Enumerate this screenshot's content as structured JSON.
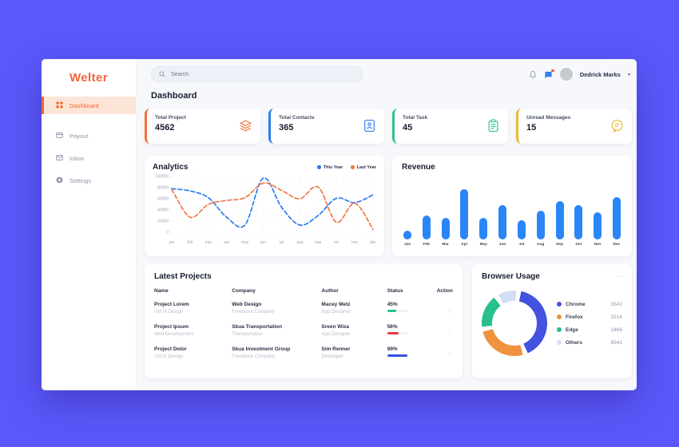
{
  "sidebar": {
    "logo": "Welter",
    "items": [
      {
        "label": "Dashboard",
        "active": true
      },
      {
        "label": "Payout",
        "active": false
      },
      {
        "label": "Inbox",
        "active": false
      },
      {
        "label": "Settings",
        "active": false
      }
    ]
  },
  "topbar": {
    "search_placeholder": "Search",
    "user_name": "Dedrick Marks",
    "caret": "▾"
  },
  "page_title": "Dashboard",
  "stats": [
    {
      "label": "Total Project",
      "value": "4562",
      "color": "#f0743a",
      "icon": "layers-icon"
    },
    {
      "label": "Total Contacts",
      "value": "365",
      "color": "#2f80ed",
      "icon": "contacts-icon"
    },
    {
      "label": "Total Task",
      "value": "45",
      "color": "#2bc48a",
      "icon": "clipboard-icon"
    },
    {
      "label": "Unread Messages",
      "value": "15",
      "color": "#e9b92e",
      "icon": "chat-icon"
    }
  ],
  "chart_data": [
    {
      "type": "line",
      "title": "Analytics",
      "categories": [
        "jan",
        "feb",
        "mar",
        "apr",
        "may",
        "jun",
        "jul",
        "aug",
        "sep",
        "oct",
        "nov",
        "dec"
      ],
      "series": [
        {
          "name": "This Year",
          "color": "#2b7bf3",
          "values": [
            78000,
            74000,
            62000,
            27000,
            13000,
            97000,
            45000,
            13000,
            30000,
            61000,
            53000,
            67000
          ]
        },
        {
          "name": "Last Year",
          "color": "#f07848",
          "values": [
            77000,
            27000,
            50000,
            57000,
            62000,
            88000,
            75000,
            60000,
            81000,
            18000,
            52000,
            5000
          ]
        }
      ],
      "ylim": [
        0,
        100000
      ],
      "yticks": [
        0,
        20000,
        40000,
        60000,
        80000,
        100000
      ],
      "grid": true,
      "legend_position": "top-right"
    },
    {
      "type": "bar",
      "title": "Revenue",
      "categories": [
        "Jan",
        "Feb",
        "Mar",
        "Apr",
        "May",
        "Jun",
        "Jul",
        "Aug",
        "Sep",
        "Oct",
        "Nov",
        "Dec"
      ],
      "values": [
        15,
        42,
        38,
        88,
        37,
        60,
        33,
        50,
        66,
        60,
        47,
        73
      ],
      "ylim": [
        0,
        100
      ],
      "bar_color": "#2a86f8",
      "xlabel": "",
      "ylabel": ""
    },
    {
      "type": "pie",
      "title": "Browser Usage",
      "labels": [
        "Chrome",
        "Firefox",
        "Edge",
        "Others"
      ],
      "values": [
        3541,
        3214,
        1466,
        6541
      ],
      "arc_percents": [
        40,
        25,
        16,
        9
      ],
      "colors": [
        "#4353e0",
        "#f0923f",
        "#27c08b",
        "#d3ddf6"
      ],
      "legend_position": "right"
    }
  ],
  "projects": {
    "title": "Latest Projects",
    "columns": [
      "Name",
      "Company",
      "Author",
      "Status",
      "Action"
    ],
    "action_glyph": "⋮",
    "rows": [
      {
        "name": "Project Lorem",
        "name_sub": "UI/UX Design",
        "company": "Web Design",
        "company_sub": "Freelance Company",
        "author": "Macey Metz",
        "author_sub": "App Designer",
        "status": "45%",
        "status_pct": 45,
        "status_color": "#21c58c"
      },
      {
        "name": "Project Ipsum",
        "name_sub": "Web Development",
        "company": "Skua Transportation",
        "company_sub": "Transportation",
        "author": "Sreen Wiza",
        "author_sub": "App Designer",
        "status": "56%",
        "status_pct": 56,
        "status_color": "#e03a45"
      },
      {
        "name": "Project Dolor",
        "name_sub": "UI/UX Design",
        "company": "Skua Investment Group",
        "company_sub": "Freelance Company",
        "author": "Sim Renner",
        "author_sub": "Developer",
        "status": "99%",
        "status_pct": 99,
        "status_color": "#3450e6"
      }
    ]
  },
  "browser": {
    "title": "Browser Usage",
    "menu_glyph": "···"
  }
}
